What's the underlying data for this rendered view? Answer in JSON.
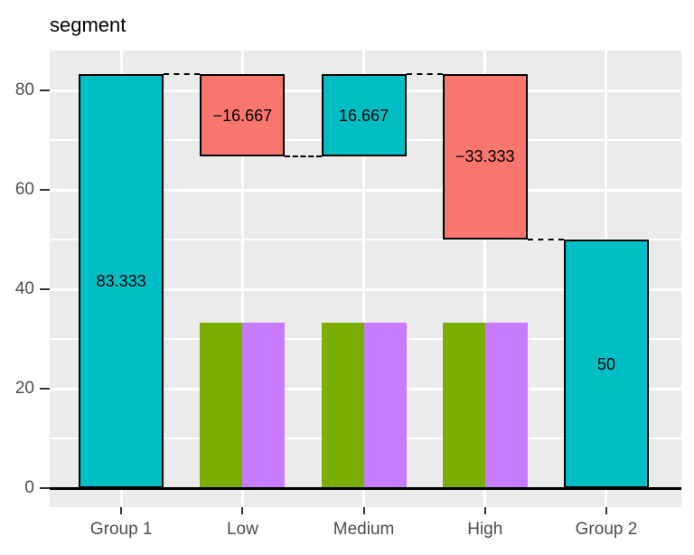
{
  "title": "segment",
  "chart_data": {
    "type": "bar",
    "subtype": "waterfall-with-dodged-bars",
    "title": "segment",
    "categories": [
      "Group 1",
      "Low",
      "Medium",
      "High",
      "Group 2"
    ],
    "xlabel": "",
    "ylabel": "",
    "ylim": [
      -4.2,
      87.5
    ],
    "yticks": [
      0,
      20,
      40,
      60,
      80
    ],
    "yminor": [
      10,
      30,
      50,
      70
    ],
    "grid": "on",
    "legend": "none",
    "waterfall_segments": [
      {
        "category": "Group 1",
        "start": 0,
        "end": 83.333,
        "value": 83.333,
        "label": "83.333",
        "color_key": "increase"
      },
      {
        "category": "Low",
        "start": 83.333,
        "end": 66.667,
        "value": -16.667,
        "label": "−16.667",
        "color_key": "decrease"
      },
      {
        "category": "Medium",
        "start": 66.667,
        "end": 83.333,
        "value": 16.667,
        "label": "16.667",
        "color_key": "increase"
      },
      {
        "category": "High",
        "start": 83.333,
        "end": 50,
        "value": -33.333,
        "label": "−33.333",
        "color_key": "decrease"
      },
      {
        "category": "Group 2",
        "start": 0,
        "end": 50,
        "value": 50,
        "label": "50",
        "color_key": "increase"
      }
    ],
    "connector_levels": [
      83.333,
      66.667,
      83.333,
      50
    ],
    "connector_style": "dashed",
    "dodged_bars": {
      "categories": [
        "Low",
        "Medium",
        "High"
      ],
      "series": [
        {
          "name": "green-series",
          "color": "#7CAE00",
          "values": [
            33.333,
            33.333,
            33.333
          ]
        },
        {
          "name": "purple-series",
          "color": "#C77CFF",
          "values": [
            33.333,
            33.333,
            33.333
          ]
        }
      ]
    },
    "colors": {
      "increase": "#00BFC4",
      "decrease": "#F8766D",
      "panel_background": "#EBEBEB",
      "gridline": "#FFFFFF",
      "bar_outline": "#000000",
      "zero_line": "#000000",
      "axis_text": "#4D4D4D",
      "title_text": "#000000"
    }
  }
}
